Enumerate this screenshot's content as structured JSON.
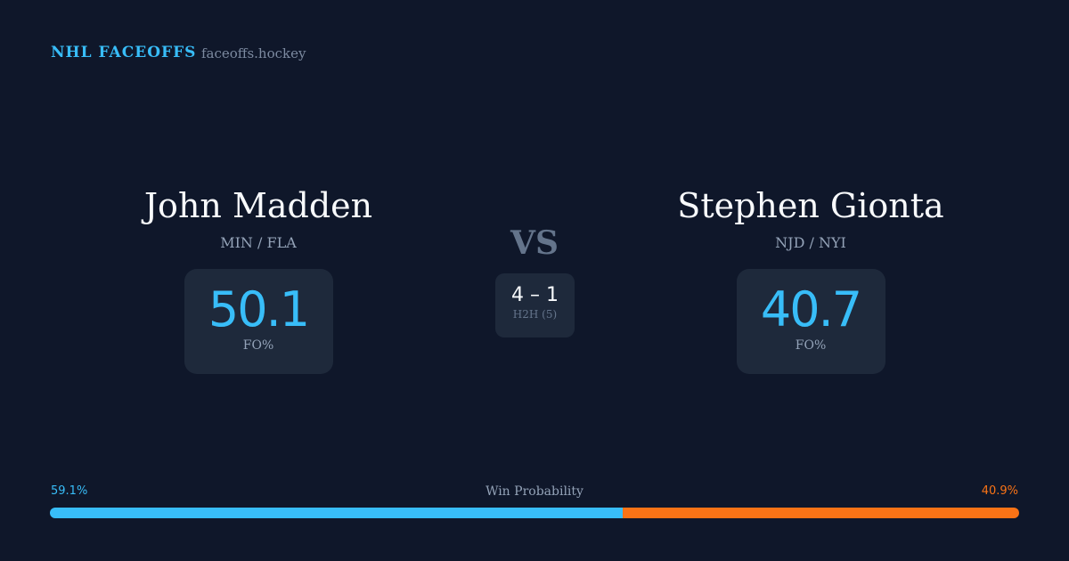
{
  "header": {
    "brand": "NHL FACEOFFS",
    "site": "faceoffs.hockey"
  },
  "player1": {
    "name": "John Madden",
    "teams": "MIN / FLA",
    "fo_pct": "50.1",
    "fo_label": "FO%"
  },
  "player2": {
    "name": "Stephen Gionta",
    "teams": "NJD / NYI",
    "fo_pct": "40.7",
    "fo_label": "FO%"
  },
  "matchup": {
    "vs": "VS",
    "h2h_score": "4 – 1",
    "h2h_label": "H2H (5)"
  },
  "win_probability": {
    "label": "Win Probability",
    "p1_label": "59.1%",
    "p2_label": "40.9%",
    "p1_value": 59.1,
    "p2_value": 40.9,
    "colors": {
      "p1": "#38bdf8",
      "p2": "#f97316"
    }
  }
}
